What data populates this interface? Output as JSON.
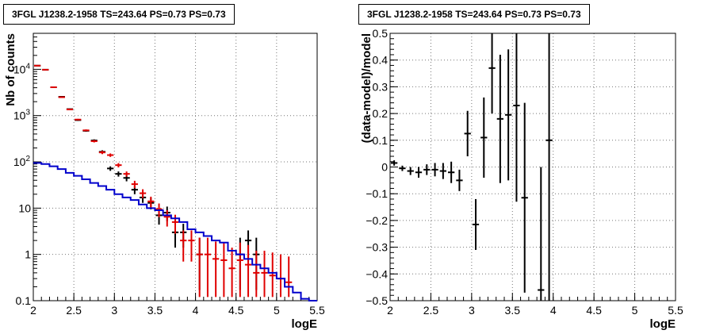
{
  "chart_data": [
    {
      "type": "scatter",
      "title": "3FGL J1238.2-1958 TS=243.64 PS=0.73 PS=0.73",
      "xlabel": "logE",
      "ylabel": "Nb of counts",
      "xlim": [
        2,
        5.5
      ],
      "ylim": [
        0.1,
        60000
      ],
      "yscale": "log",
      "grid": true,
      "x_ticks": [
        "2",
        "2.5",
        "3",
        "3.5",
        "4",
        "4.5",
        "5",
        "5.5"
      ],
      "y_ticks": [
        "0.1",
        "1",
        "10",
        "10^2",
        "10^3",
        "10^4"
      ],
      "bin_edges": [
        2.0,
        2.1,
        2.2,
        2.3,
        2.4,
        2.5,
        2.6,
        2.7,
        2.8,
        2.9,
        3.0,
        3.1,
        3.2,
        3.3,
        3.4,
        3.5,
        3.6,
        3.7,
        3.8,
        3.9,
        4.0,
        4.1,
        4.2,
        4.3,
        4.4,
        4.5,
        4.6,
        4.7,
        4.8,
        4.9,
        5.0,
        5.1,
        5.2,
        5.3,
        5.4,
        5.5
      ],
      "series": [
        {
          "color": "#000000",
          "style": "errorbar",
          "x": [
            2.05,
            2.15,
            2.25,
            2.35,
            2.45,
            2.55,
            2.65,
            2.75,
            2.85,
            2.95,
            3.05,
            3.15,
            3.25,
            3.35,
            3.45,
            3.55,
            3.65,
            3.75,
            3.85,
            4.05,
            4.55,
            4.65,
            4.75
          ],
          "y": [
            12000,
            9800,
            4100,
            2550,
            1380,
            800,
            470,
            290,
            165,
            72,
            55,
            45,
            25,
            17,
            13,
            7,
            8,
            3,
            3,
            1,
            1,
            2,
            1
          ],
          "ylow": [
            11890,
            9700,
            4036,
            2500,
            1343,
            772,
            448,
            273,
            152,
            64,
            48,
            38,
            20,
            13,
            9.4,
            4.4,
            5.2,
            1.4,
            1.4,
            0.17,
            0.17,
            0.7,
            0.17
          ],
          "yhigh": [
            12110,
            9900,
            4164,
            2600,
            1417,
            828,
            492,
            307,
            178,
            80,
            62,
            52,
            30,
            21,
            16.6,
            9.6,
            10.8,
            4.6,
            4.6,
            2.3,
            2.3,
            3.3,
            2.3
          ]
        },
        {
          "color": "#e00000",
          "style": "errorbar",
          "x": [
            2.05,
            2.15,
            2.25,
            2.35,
            2.45,
            2.55,
            2.65,
            2.75,
            2.85,
            2.95,
            3.05,
            3.15,
            3.25,
            3.35,
            3.45,
            3.55,
            3.65,
            3.75,
            3.85,
            3.95,
            4.05,
            4.15,
            4.25,
            4.35,
            4.45,
            4.55,
            4.65,
            4.75,
            4.85,
            4.95,
            5.05,
            5.15
          ],
          "y": [
            12000,
            9800,
            4100,
            2500,
            1360,
            820,
            480,
            280,
            160,
            140,
            85,
            55,
            33,
            21,
            14,
            9.5,
            6.5,
            5,
            2,
            2,
            1,
            1,
            0.8,
            0.75,
            0.5,
            0.75,
            0.6,
            0.4,
            0.4,
            0.35,
            0.3,
            0.25
          ],
          "ylow": [
            11890,
            9700,
            4036,
            2450,
            1323,
            791,
            458,
            263,
            147,
            128,
            76,
            48,
            27,
            16.4,
            10.3,
            6.4,
            4,
            2.8,
            0.7,
            0.7,
            0.12,
            0.12,
            0.12,
            0.12,
            0.12,
            0.12,
            0.12,
            0.12,
            0.12,
            0.12,
            0.12,
            0.12
          ],
          "yhigh": [
            12110,
            9900,
            4164,
            2550,
            1397,
            849,
            502,
            297,
            173,
            152,
            94,
            62,
            39,
            25.6,
            17.7,
            12.6,
            9,
            7.2,
            3.3,
            3.3,
            2.3,
            2.3,
            1.9,
            1.8,
            1.4,
            1.8,
            1.6,
            1.2,
            1.2,
            1.1,
            1,
            0.9
          ]
        },
        {
          "color": "#0000cc",
          "style": "step",
          "values": [
            95,
            90,
            80,
            70,
            58,
            50,
            42,
            35,
            30,
            25,
            20,
            17,
            15,
            12,
            10,
            9,
            7,
            6,
            5,
            3.5,
            3,
            2.5,
            2,
            1.8,
            1.2,
            1,
            0.8,
            0.6,
            0.5,
            0.4,
            0.3,
            0.2,
            0.15,
            0.11,
            0.1
          ]
        }
      ]
    },
    {
      "type": "scatter",
      "title": "3FGL J1238.2-1958 TS=243.64 PS=0.73 PS=0.73",
      "xlabel": "logE",
      "ylabel": "(data-model)/model",
      "xlim": [
        2,
        5.5
      ],
      "ylim": [
        -0.5,
        0.5
      ],
      "grid": true,
      "x_ticks": [
        "2",
        "2.5",
        "3",
        "3.5",
        "4",
        "4.5",
        "5",
        "5.5"
      ],
      "y_ticks": [
        "−0.5",
        "−0.4",
        "−0.3",
        "−0.2",
        "−0.1",
        "0",
        "0.1",
        "0.2",
        "0.3",
        "0.4",
        "0.5"
      ],
      "series": [
        {
          "color": "#000000",
          "style": "errorbar",
          "x": [
            2.05,
            2.15,
            2.25,
            2.35,
            2.45,
            2.55,
            2.65,
            2.75,
            2.85,
            2.95,
            3.05,
            3.15,
            3.25,
            3.35,
            3.45,
            3.55,
            3.65,
            3.85,
            3.95
          ],
          "y": [
            0.015,
            -0.005,
            -0.015,
            -0.02,
            -0.01,
            -0.01,
            -0.015,
            -0.02,
            -0.05,
            0.125,
            -0.215,
            0.11,
            0.37,
            0.18,
            0.195,
            0.23,
            -0.115,
            -0.46,
            0.1
          ],
          "ylow": [
            0.005,
            -0.015,
            -0.03,
            -0.04,
            -0.03,
            -0.035,
            -0.045,
            -0.06,
            -0.09,
            0.04,
            -0.31,
            -0.04,
            0.2,
            -0.06,
            -0.05,
            -0.13,
            -0.47,
            -0.5,
            -0.5
          ],
          "yhigh": [
            0.025,
            0.005,
            0,
            0,
            0.01,
            0.015,
            0.015,
            0.02,
            -0.01,
            0.21,
            -0.12,
            0.26,
            0.5,
            0.42,
            0.44,
            0.5,
            0.24,
            0,
            0.5
          ]
        }
      ]
    }
  ]
}
